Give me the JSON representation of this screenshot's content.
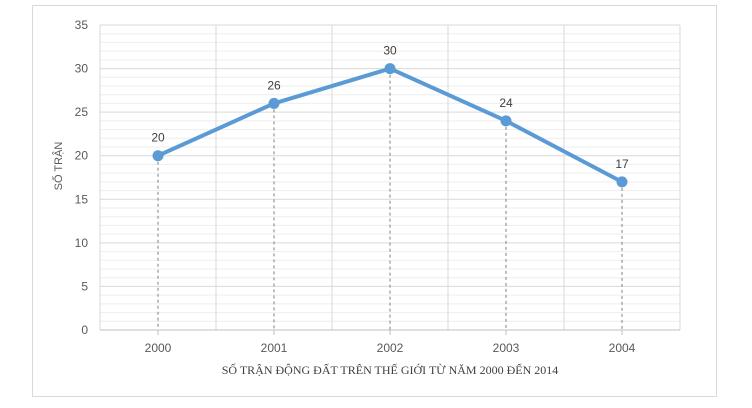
{
  "chart_data": {
    "type": "line",
    "categories": [
      "2000",
      "2001",
      "2002",
      "2003",
      "2004"
    ],
    "values": [
      20,
      26,
      30,
      24,
      17
    ],
    "data_labels": [
      "20",
      "26",
      "30",
      "24",
      "17"
    ],
    "ylim": [
      0,
      35
    ],
    "yticks": [
      0,
      5,
      10,
      15,
      20,
      25,
      30,
      35
    ],
    "ytick_labels": [
      "0",
      "5",
      "10",
      "15",
      "20",
      "25",
      "30",
      "35"
    ],
    "ylabel": "SỐ TRẬN",
    "xlabel": "SỐ TRẬN ĐỘNG ĐẤT TRÊN THẾ GIỚI TỪ NĂM 2000 ĐẾN 2014",
    "grid": true,
    "minor_grid": true,
    "drop_lines": true,
    "legend": false,
    "line_color": "#5b9bd5",
    "grid_color": "#d9d9d9",
    "drop_line_color": "#7f7f7f"
  }
}
